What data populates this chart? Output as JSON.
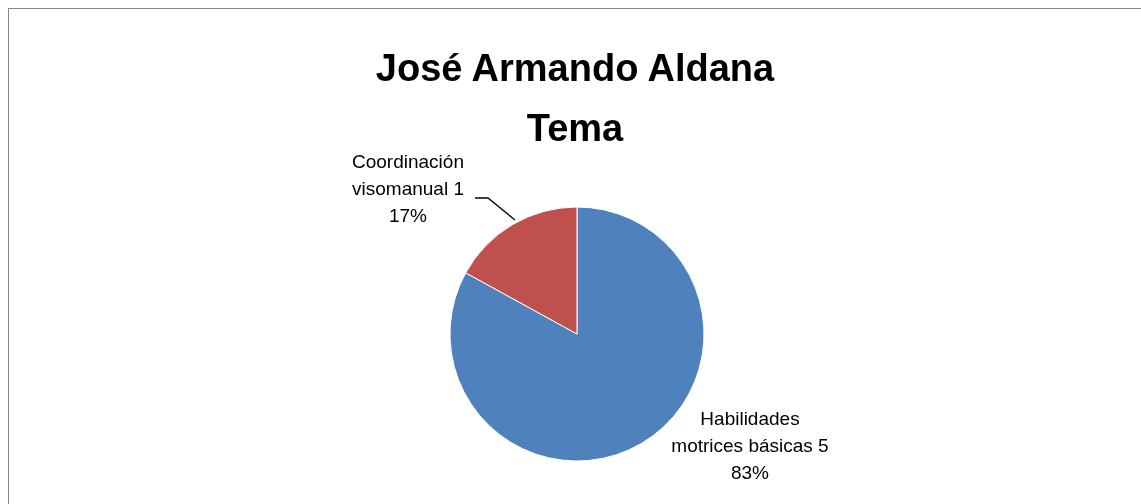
{
  "chart_data": {
    "type": "pie",
    "title": "José Armando Aldana\nTema",
    "categories": [
      "Habilidades motrices básicas 5",
      "Coordinación visomanual 1"
    ],
    "values": [
      83,
      17
    ],
    "colors": [
      "#4f81bd",
      "#c0504d"
    ],
    "value_labels": [
      "83%",
      "17%"
    ]
  }
}
